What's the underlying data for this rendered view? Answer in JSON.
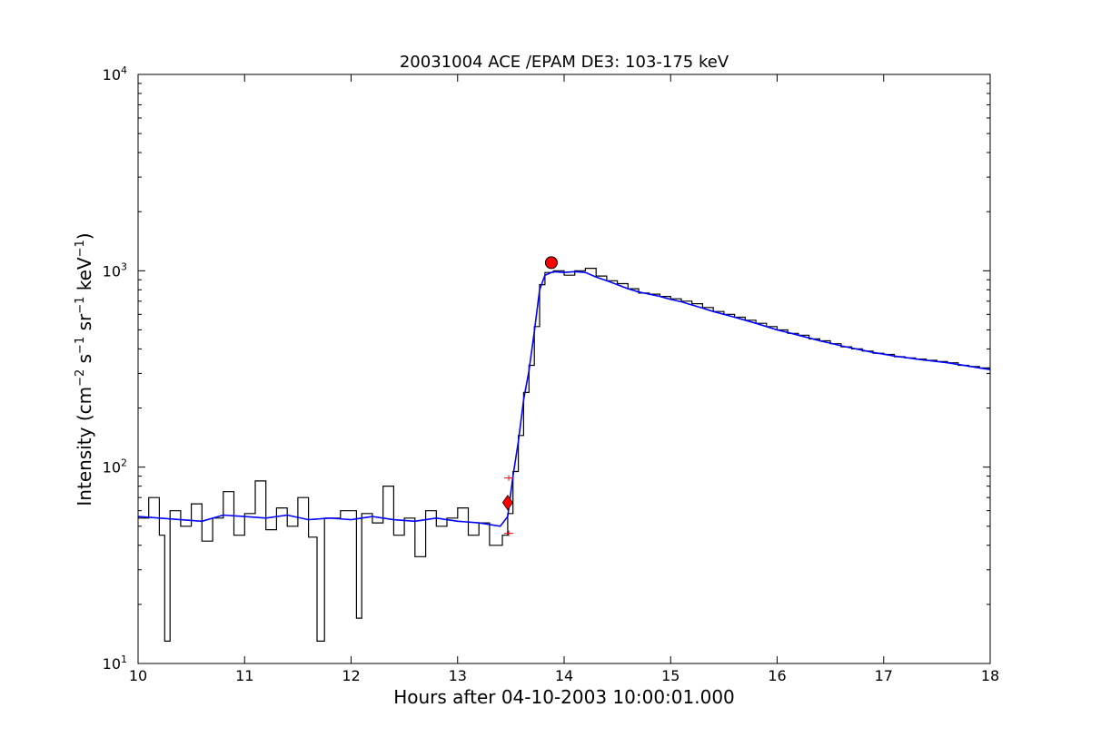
{
  "chart_data": {
    "type": "line",
    "title": "20031004 ACE /EPAM DE3: 103-175 keV",
    "xlabel": "Hours after 04-10-2003 10:00:01.000",
    "ylabel_parts": [
      "Intensity (cm",
      "−2",
      "s",
      "−1",
      "sr",
      "−1",
      "keV",
      "−1",
      ")"
    ],
    "xlim": [
      10,
      18
    ],
    "ylim": [
      10,
      10000
    ],
    "yscale": "log",
    "grid": false,
    "x_ticks": [
      {
        "value": 10,
        "label": "10"
      },
      {
        "value": 11,
        "label": "11"
      },
      {
        "value": 12,
        "label": "12"
      },
      {
        "value": 13,
        "label": "13"
      },
      {
        "value": 14,
        "label": "14"
      },
      {
        "value": 15,
        "label": "15"
      },
      {
        "value": 16,
        "label": "16"
      },
      {
        "value": 17,
        "label": "17"
      },
      {
        "value": 18,
        "label": "18"
      }
    ],
    "y_ticks": [
      {
        "value": 10,
        "base": "10",
        "exp": "1"
      },
      {
        "value": 100,
        "base": "10",
        "exp": "2"
      },
      {
        "value": 1000,
        "base": "10",
        "exp": "3"
      },
      {
        "value": 10000,
        "base": "10",
        "exp": "4"
      }
    ],
    "series": [
      {
        "color": "#000000",
        "style": "steps",
        "points": [
          [
            10.0,
            55
          ],
          [
            10.1,
            70
          ],
          [
            10.2,
            45
          ],
          [
            10.25,
            13
          ],
          [
            10.3,
            60
          ],
          [
            10.4,
            50
          ],
          [
            10.5,
            65
          ],
          [
            10.6,
            42
          ],
          [
            10.7,
            55
          ],
          [
            10.8,
            75
          ],
          [
            10.9,
            45
          ],
          [
            11.0,
            58
          ],
          [
            11.1,
            85
          ],
          [
            11.2,
            48
          ],
          [
            11.3,
            62
          ],
          [
            11.4,
            50
          ],
          [
            11.5,
            70
          ],
          [
            11.6,
            44
          ],
          [
            11.68,
            13
          ],
          [
            11.75,
            55
          ],
          [
            11.9,
            60
          ],
          [
            12.05,
            17
          ],
          [
            12.1,
            58
          ],
          [
            12.2,
            52
          ],
          [
            12.3,
            80
          ],
          [
            12.4,
            45
          ],
          [
            12.5,
            55
          ],
          [
            12.6,
            35
          ],
          [
            12.7,
            60
          ],
          [
            12.8,
            50
          ],
          [
            12.9,
            55
          ],
          [
            13.0,
            62
          ],
          [
            13.1,
            45
          ],
          [
            13.2,
            52
          ],
          [
            13.3,
            40
          ],
          [
            13.42,
            45
          ],
          [
            13.47,
            58
          ],
          [
            13.52,
            95
          ],
          [
            13.57,
            145
          ],
          [
            13.62,
            240
          ],
          [
            13.67,
            330
          ],
          [
            13.72,
            520
          ],
          [
            13.77,
            850
          ],
          [
            13.82,
            980
          ],
          [
            13.9,
            1000
          ],
          [
            14.0,
            950
          ],
          [
            14.1,
            1000
          ],
          [
            14.2,
            1030
          ],
          [
            14.3,
            940
          ],
          [
            14.4,
            890
          ],
          [
            14.5,
            860
          ],
          [
            14.6,
            810
          ],
          [
            14.7,
            770
          ],
          [
            14.8,
            760
          ],
          [
            14.9,
            740
          ],
          [
            15.0,
            720
          ],
          [
            15.1,
            700
          ],
          [
            15.2,
            680
          ],
          [
            15.3,
            650
          ],
          [
            15.4,
            620
          ],
          [
            15.5,
            600
          ],
          [
            15.6,
            580
          ],
          [
            15.7,
            560
          ],
          [
            15.8,
            540
          ],
          [
            15.9,
            520
          ],
          [
            16.0,
            500
          ],
          [
            16.1,
            480
          ],
          [
            16.2,
            470
          ],
          [
            16.3,
            450
          ],
          [
            16.4,
            440
          ],
          [
            16.5,
            425
          ],
          [
            16.6,
            410
          ],
          [
            16.7,
            400
          ],
          [
            16.8,
            390
          ],
          [
            16.9,
            380
          ],
          [
            17.0,
            375
          ],
          [
            17.1,
            365
          ],
          [
            17.2,
            360
          ],
          [
            17.3,
            355
          ],
          [
            17.4,
            350
          ],
          [
            17.5,
            345
          ],
          [
            17.6,
            340
          ],
          [
            17.7,
            330
          ],
          [
            17.8,
            325
          ],
          [
            17.9,
            320
          ],
          [
            18.0,
            310
          ]
        ]
      },
      {
        "color": "#0000ff",
        "style": "line",
        "points": [
          [
            10.0,
            56
          ],
          [
            10.2,
            55
          ],
          [
            10.4,
            54
          ],
          [
            10.6,
            53
          ],
          [
            10.8,
            57
          ],
          [
            11.0,
            56
          ],
          [
            11.2,
            55
          ],
          [
            11.4,
            57
          ],
          [
            11.6,
            54
          ],
          [
            11.8,
            55
          ],
          [
            12.0,
            54
          ],
          [
            12.2,
            56
          ],
          [
            12.4,
            54
          ],
          [
            12.6,
            53
          ],
          [
            12.8,
            55
          ],
          [
            13.0,
            53
          ],
          [
            13.2,
            52
          ],
          [
            13.4,
            50
          ],
          [
            13.47,
            56
          ],
          [
            13.52,
            90
          ],
          [
            13.57,
            135
          ],
          [
            13.62,
            220
          ],
          [
            13.67,
            310
          ],
          [
            13.72,
            490
          ],
          [
            13.77,
            800
          ],
          [
            13.82,
            950
          ],
          [
            13.9,
            990
          ],
          [
            14.0,
            980
          ],
          [
            14.1,
            990
          ],
          [
            14.2,
            980
          ],
          [
            14.3,
            930
          ],
          [
            14.4,
            890
          ],
          [
            14.5,
            850
          ],
          [
            14.6,
            810
          ],
          [
            14.7,
            780
          ],
          [
            14.8,
            760
          ],
          [
            14.9,
            740
          ],
          [
            15.0,
            715
          ],
          [
            15.1,
            695
          ],
          [
            15.2,
            670
          ],
          [
            15.3,
            645
          ],
          [
            15.4,
            620
          ],
          [
            15.5,
            600
          ],
          [
            15.6,
            580
          ],
          [
            15.7,
            560
          ],
          [
            15.8,
            540
          ],
          [
            15.9,
            520
          ],
          [
            16.0,
            500
          ],
          [
            16.1,
            485
          ],
          [
            16.2,
            470
          ],
          [
            16.3,
            455
          ],
          [
            16.4,
            440
          ],
          [
            16.5,
            428
          ],
          [
            16.6,
            415
          ],
          [
            16.7,
            404
          ],
          [
            16.8,
            394
          ],
          [
            16.9,
            384
          ],
          [
            17.0,
            376
          ],
          [
            17.1,
            368
          ],
          [
            17.2,
            362
          ],
          [
            17.3,
            356
          ],
          [
            17.4,
            350
          ],
          [
            17.5,
            345
          ],
          [
            17.6,
            340
          ],
          [
            17.7,
            333
          ],
          [
            17.8,
            327
          ],
          [
            17.9,
            320
          ],
          [
            18.0,
            314
          ]
        ]
      }
    ],
    "markers": [
      {
        "kind": "diamond",
        "x": 13.47,
        "y": 66,
        "color": "#ff0000"
      },
      {
        "kind": "circle",
        "x": 13.88,
        "y": 1100,
        "color": "#ff0000"
      },
      {
        "kind": "plus",
        "x": 13.48,
        "y": 88,
        "color": "#ff0000"
      },
      {
        "kind": "plus",
        "x": 13.48,
        "y": 46,
        "color": "#ff0000"
      }
    ]
  }
}
